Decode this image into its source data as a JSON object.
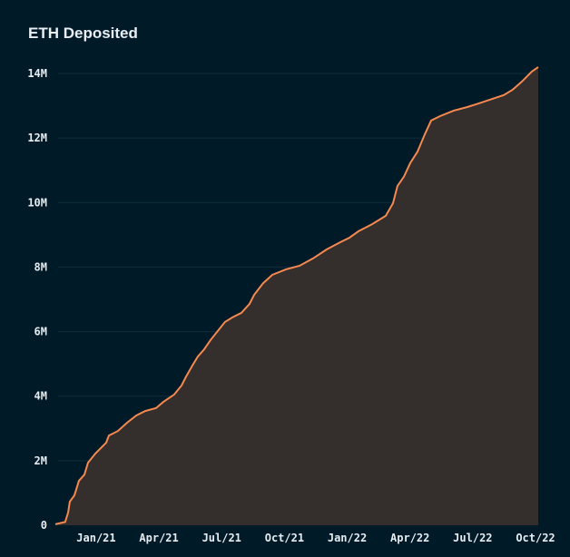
{
  "chart_data": {
    "type": "area",
    "title": "ETH Deposited",
    "xlabel": "",
    "ylabel": "",
    "x_unit": "months since Jan 2021",
    "ylim": [
      0,
      14000000
    ],
    "xlim": [
      -1.95,
      21.13
    ],
    "grid": true,
    "legend": "none",
    "y_ticks": [
      {
        "v": 0,
        "label": "0"
      },
      {
        "v": 2000000,
        "label": "2M"
      },
      {
        "v": 4000000,
        "label": "4M"
      },
      {
        "v": 6000000,
        "label": "6M"
      },
      {
        "v": 8000000,
        "label": "8M"
      },
      {
        "v": 10000000,
        "label": "10M"
      },
      {
        "v": 12000000,
        "label": "12M"
      },
      {
        "v": 14000000,
        "label": "14M"
      }
    ],
    "x_ticks": [
      {
        "v": 0,
        "label": "Jan/21"
      },
      {
        "v": 3,
        "label": "Apr/21"
      },
      {
        "v": 6,
        "label": "Jul/21"
      },
      {
        "v": 9,
        "label": "Oct/21"
      },
      {
        "v": 12,
        "label": "Jan/22"
      },
      {
        "v": 15,
        "label": "Apr/22"
      },
      {
        "v": 18,
        "label": "Jul/22"
      },
      {
        "v": 21,
        "label": "Oct/22"
      }
    ],
    "series": [
      {
        "name": "ETH Deposited",
        "x": [
          -1.95,
          -1.48,
          -1.34,
          -1.26,
          -1.04,
          -0.82,
          -0.56,
          -0.39,
          -0.04,
          0.48,
          0.61,
          1.04,
          1.48,
          1.91,
          2.34,
          2.86,
          3.21,
          3.73,
          4.08,
          4.3,
          4.6,
          4.86,
          5.16,
          5.47,
          5.81,
          6.16,
          6.51,
          6.94,
          7.33,
          7.55,
          7.98,
          8.42,
          9.07,
          9.72,
          10.37,
          11.02,
          11.67,
          12.1,
          12.54,
          13.19,
          13.84,
          14.19,
          14.4,
          14.71,
          15.01,
          15.36,
          15.71,
          16.01,
          16.44,
          17.09,
          17.74,
          18.18,
          18.83,
          19.48,
          19.91,
          20.35,
          20.82,
          21.13
        ],
        "y": [
          30000,
          100000,
          400000,
          730000,
          930000,
          1380000,
          1570000,
          1940000,
          2220000,
          2560000,
          2780000,
          2920000,
          3180000,
          3400000,
          3540000,
          3630000,
          3820000,
          4050000,
          4330000,
          4610000,
          4950000,
          5230000,
          5450000,
          5740000,
          6020000,
          6300000,
          6440000,
          6580000,
          6860000,
          7140000,
          7500000,
          7760000,
          7930000,
          8040000,
          8270000,
          8550000,
          8770000,
          8910000,
          9110000,
          9330000,
          9590000,
          9980000,
          10510000,
          10800000,
          11220000,
          11580000,
          12120000,
          12540000,
          12680000,
          12850000,
          12960000,
          13050000,
          13190000,
          13330000,
          13500000,
          13750000,
          14060000,
          14200000
        ]
      }
    ]
  },
  "colors": {
    "background": "#011a28",
    "line": "#f5894f",
    "fill": "#342e2c",
    "grid": "#0f2e3a"
  }
}
